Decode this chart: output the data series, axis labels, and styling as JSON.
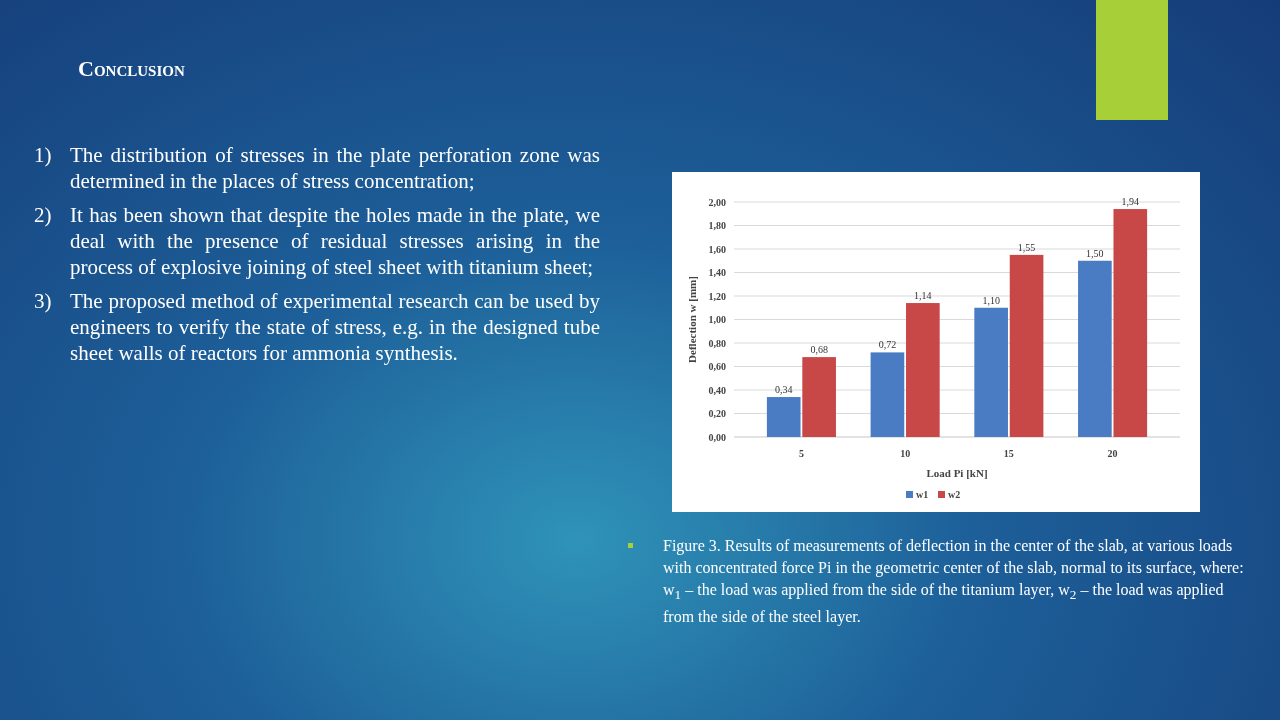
{
  "chart_data": {
    "type": "bar",
    "title": "Conclusion",
    "annotations": [
      "1) The distribution of stresses in the plate perforation zone was determined in the places of stress concentration;",
      "2) It has been shown that despite the holes made in the plate, we deal with the presence of residual stresses arising in the process of explosive joining of steel sheet with titanium sheet;",
      "3) The proposed method of experimental research can be used by engineers to verify the state of stress, e.g. in the designed tube sheet walls of reactors for ammonia synthesis.",
      "Figure 3. Results of measurements of deflection in the center of the slab, at various loads with concentrated force Pi in the geometric center of the slab, normal to its surface, where: w$_{1}$ –  the load was applied from the side of the titanium layer, w$_{2}$ – the load was applied from the side of the steel layer."
    ],
    "xlabel": "Load Pi [kN]",
    "ylabel": "Deflection w [mm]",
    "categories": [
      "5",
      "10",
      "15",
      "20"
    ],
    "series": [
      {
        "name": "w1",
        "color": "#4a7cc4",
        "values": [
          0.34,
          0.72,
          1.1,
          1.5
        ],
        "value_labels": [
          "0,34",
          "0,72",
          "1,10",
          "1,50"
        ]
      },
      {
        "name": "w2",
        "color": "#c84848",
        "values": [
          0.68,
          1.14,
          1.55,
          1.94
        ],
        "value_labels": [
          "0,68",
          "1,14",
          "1,55",
          "1,94"
        ]
      }
    ],
    "ylim": [
      0,
      2
    ],
    "yticks": [
      {
        "value": 0,
        "label": "0,00"
      },
      {
        "value": 0.2,
        "label": "0,20"
      },
      {
        "value": 0.4,
        "label": "0,40"
      },
      {
        "value": 0.6,
        "label": "0,60"
      },
      {
        "value": 0.8,
        "label": "0,80"
      },
      {
        "value": 1,
        "label": "1,00"
      },
      {
        "value": 1.2,
        "label": "1,20"
      },
      {
        "value": 1.4,
        "label": "1,40"
      },
      {
        "value": 1.6,
        "label": "1,60"
      },
      {
        "value": 1.8,
        "label": "1,80"
      },
      {
        "value": 2,
        "label": "2,00"
      }
    ],
    "grid": "y",
    "legend": "bottom"
  }
}
